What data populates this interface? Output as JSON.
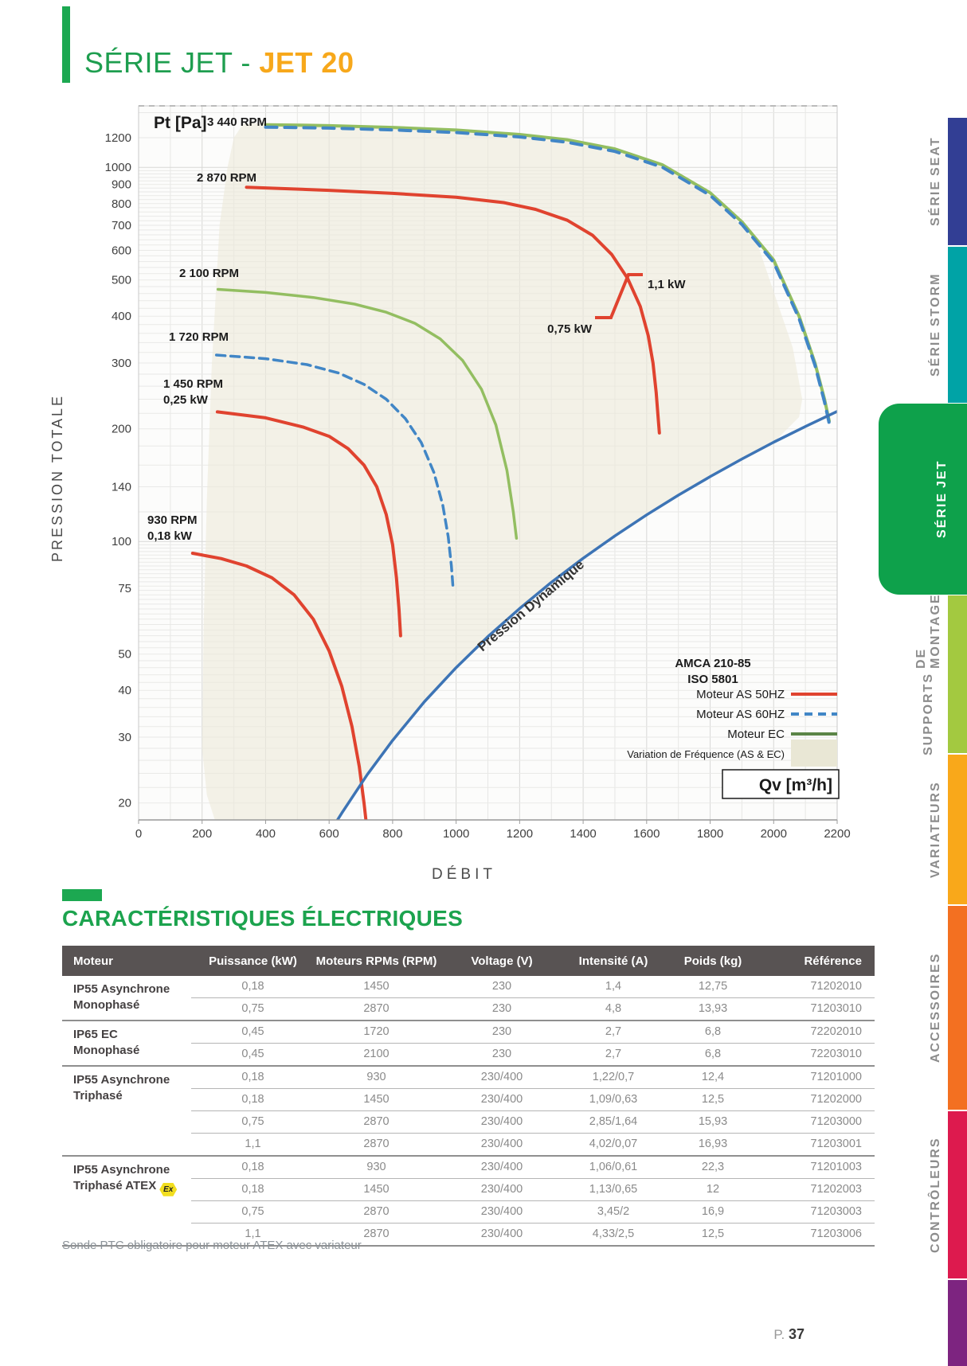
{
  "title": {
    "prefix": "SÉRIE JET - ",
    "highlight": "JET 20"
  },
  "sidebar": {
    "tabs": [
      {
        "id": "serie-seat",
        "lines": [
          "SÉRIE",
          "SEAT"
        ],
        "color": "#323E94",
        "active": false
      },
      {
        "id": "serie-storm",
        "lines": [
          "SÉRIE",
          "STORM"
        ],
        "color": "#00A3A6",
        "active": false
      },
      {
        "id": "serie-jet",
        "lines": [
          "SÉRIE",
          "JET"
        ],
        "color": "#0EA14B",
        "active": true
      },
      {
        "id": "supports-de-montage",
        "lines": [
          "SUPPORTS",
          "DE MONTAGE"
        ],
        "color": "#A3C940",
        "active": false
      },
      {
        "id": "variateurs",
        "lines": [
          "VARIATEURS"
        ],
        "color": "#F9A81A",
        "active": false
      },
      {
        "id": "accessoires",
        "lines": [
          "ACCESSOIRES"
        ],
        "color": "#F37021",
        "active": false
      },
      {
        "id": "controleurs",
        "lines": [
          "CONTRÔLEURS"
        ],
        "color": "#DD1A4E",
        "active": false
      },
      {
        "id": "section-next",
        "lines": [],
        "color": "#7D2480",
        "active": false
      }
    ]
  },
  "chart_data": {
    "type": "line",
    "y_label": "Pt [Pa]",
    "y_axis_caption": "PRESSION TOTALE",
    "x_label": "Qv [m³/h]",
    "x_axis_caption": "DÉBIT",
    "y_scale": "log",
    "x_range": [
      0,
      2200
    ],
    "y_range": [
      18,
      1460
    ],
    "x_ticks": [
      0,
      200,
      400,
      600,
      800,
      1000,
      1200,
      1400,
      1600,
      1800,
      2000,
      2200
    ],
    "y_ticks": [
      1200,
      1000,
      900,
      800,
      700,
      600,
      500,
      400,
      300,
      200,
      140,
      100,
      75,
      50,
      40,
      30,
      20
    ],
    "region_color": "#ECEADB",
    "region_points": [
      [
        330,
        1310
      ],
      [
        500,
        1315
      ],
      [
        800,
        1280
      ],
      [
        1000,
        1258
      ],
      [
        1200,
        1222
      ],
      [
        1400,
        1163
      ],
      [
        1600,
        1048
      ],
      [
        1750,
        905
      ],
      [
        1850,
        775
      ],
      [
        1950,
        620
      ],
      [
        2060,
        330
      ],
      [
        2090,
        240
      ],
      [
        2080,
        215
      ],
      [
        2000,
        184
      ],
      [
        1900,
        166
      ],
      [
        1700,
        133
      ],
      [
        1500,
        103.5
      ],
      [
        1300,
        77.8
      ],
      [
        1100,
        55.7
      ],
      [
        900,
        37.3
      ],
      [
        750,
        25.8
      ],
      [
        640,
        19
      ],
      [
        560,
        15.2
      ],
      [
        470,
        13
      ],
      [
        380,
        13.5
      ],
      [
        300,
        15
      ],
      [
        245,
        17.5
      ],
      [
        215,
        21
      ],
      [
        200,
        28
      ],
      [
        205,
        60
      ],
      [
        215,
        130
      ],
      [
        230,
        290
      ],
      [
        255,
        700
      ],
      [
        280,
        1000
      ],
      [
        300,
        1200
      ]
    ],
    "series": [
      {
        "name": "EC 3440 RPM",
        "color": "#93BE61",
        "dash": null,
        "width": 4,
        "points": [
          [
            400,
            1300
          ],
          [
            600,
            1292
          ],
          [
            800,
            1278
          ],
          [
            1000,
            1258
          ],
          [
            1200,
            1224
          ],
          [
            1350,
            1185
          ],
          [
            1500,
            1120
          ],
          [
            1650,
            1015
          ],
          [
            1800,
            855
          ],
          [
            1900,
            715
          ],
          [
            2000,
            565
          ],
          [
            2080,
            400
          ],
          [
            2130,
            300
          ],
          [
            2160,
            240
          ],
          [
            2175,
            210
          ]
        ]
      },
      {
        "name": "AS 60HZ 3440 RPM",
        "color": "#4186C6",
        "dash": "14 10",
        "width": 4,
        "points": [
          [
            400,
            1281
          ],
          [
            600,
            1273
          ],
          [
            800,
            1259
          ],
          [
            1000,
            1239
          ],
          [
            1200,
            1206
          ],
          [
            1350,
            1167
          ],
          [
            1500,
            1103
          ],
          [
            1650,
            1000
          ],
          [
            1800,
            842
          ],
          [
            1900,
            704
          ],
          [
            2000,
            557
          ],
          [
            2080,
            394
          ],
          [
            2130,
            296
          ],
          [
            2160,
            236
          ],
          [
            2175,
            207
          ]
        ]
      },
      {
        "name": "AS 50HZ 2870 RPM",
        "color": "#E0432F",
        "dash": null,
        "width": 4,
        "points": [
          [
            340,
            885
          ],
          [
            600,
            868
          ],
          [
            800,
            852
          ],
          [
            1000,
            832
          ],
          [
            1150,
            805
          ],
          [
            1250,
            772
          ],
          [
            1350,
            722
          ],
          [
            1430,
            658
          ],
          [
            1490,
            585
          ],
          [
            1540,
            505
          ],
          [
            1580,
            425
          ],
          [
            1605,
            355
          ],
          [
            1620,
            300
          ],
          [
            1630,
            250
          ],
          [
            1636,
            215
          ],
          [
            1640,
            195
          ]
        ]
      },
      {
        "name": "EC 2100 RPM",
        "color": "#93BE61",
        "dash": null,
        "width": 3.5,
        "points": [
          [
            250,
            472
          ],
          [
            400,
            463
          ],
          [
            550,
            449
          ],
          [
            680,
            431
          ],
          [
            780,
            410
          ],
          [
            870,
            383
          ],
          [
            950,
            348
          ],
          [
            1020,
            305
          ],
          [
            1080,
            255
          ],
          [
            1125,
            205
          ],
          [
            1160,
            155
          ],
          [
            1180,
            120
          ],
          [
            1190,
            102
          ]
        ]
      },
      {
        "name": "AS 60HZ 1720 RPM",
        "color": "#4186C6",
        "dash": "11 7",
        "width": 3.5,
        "points": [
          [
            245,
            315
          ],
          [
            400,
            308
          ],
          [
            530,
            297
          ],
          [
            630,
            282
          ],
          [
            710,
            263
          ],
          [
            780,
            240
          ],
          [
            840,
            213
          ],
          [
            890,
            184
          ],
          [
            930,
            153
          ],
          [
            958,
            125
          ],
          [
            975,
            103
          ],
          [
            985,
            86
          ],
          [
            990,
            76
          ]
        ]
      },
      {
        "name": "AS 50HZ 1450 RPM",
        "color": "#E0432F",
        "dash": null,
        "width": 4,
        "points": [
          [
            248,
            222
          ],
          [
            400,
            214
          ],
          [
            520,
            202
          ],
          [
            600,
            191
          ],
          [
            660,
            177
          ],
          [
            710,
            160
          ],
          [
            750,
            140
          ],
          [
            780,
            118
          ],
          [
            800,
            98
          ],
          [
            812,
            80
          ],
          [
            820,
            66
          ],
          [
            825,
            56
          ]
        ]
      },
      {
        "name": "AS 50HZ 930 RPM",
        "color": "#E0432F",
        "dash": null,
        "width": 4,
        "points": [
          [
            170,
            93
          ],
          [
            260,
            90
          ],
          [
            340,
            86
          ],
          [
            420,
            80
          ],
          [
            490,
            72
          ],
          [
            550,
            62
          ],
          [
            600,
            51
          ],
          [
            640,
            41
          ],
          [
            672,
            32
          ],
          [
            695,
            25
          ],
          [
            710,
            20
          ],
          [
            716,
            18
          ]
        ]
      },
      {
        "name": "Pression Dynamique",
        "color": "#3D74B5",
        "dash": null,
        "width": 3.5,
        "points": [
          [
            600,
            16.6
          ],
          [
            640,
            18.8
          ],
          [
            720,
            23.8
          ],
          [
            800,
            29.4
          ],
          [
            900,
            37.3
          ],
          [
            1000,
            46
          ],
          [
            1100,
            55.7
          ],
          [
            1200,
            66.2
          ],
          [
            1300,
            77.8
          ],
          [
            1400,
            90.2
          ],
          [
            1500,
            103.5
          ],
          [
            1600,
            117.8
          ],
          [
            1700,
            133
          ],
          [
            1800,
            149
          ],
          [
            1900,
            166.1
          ],
          [
            2000,
            184.2
          ],
          [
            2100,
            202.9
          ],
          [
            2200,
            222.7
          ]
        ]
      }
    ],
    "annotations": [
      {
        "text": "3 440 RPM",
        "x": 165,
        "y": 33,
        "anchor": "start",
        "size": 15
      },
      {
        "text": "2 870 RPM",
        "x": 152,
        "y": 103,
        "anchor": "start",
        "size": 15
      },
      {
        "text": "2 100 RPM",
        "x": 130,
        "y": 223,
        "anchor": "start",
        "size": 15
      },
      {
        "text": "1 720 RPM",
        "x": 117,
        "y": 303,
        "anchor": "start",
        "size": 15
      },
      {
        "text": "1 450 RPM",
        "x": 110,
        "y": 362,
        "anchor": "start",
        "size": 15
      },
      {
        "text": "0,25 kW",
        "x": 110,
        "y": 382,
        "anchor": "start",
        "size": 15
      },
      {
        "text": "930 RPM",
        "x": 90,
        "y": 533,
        "anchor": "start",
        "size": 15
      },
      {
        "text": "0,18 kW",
        "x": 90,
        "y": 553,
        "anchor": "start",
        "size": 15
      },
      {
        "text": "1,1 kW",
        "x": 718,
        "y": 237,
        "anchor": "start",
        "size": 15
      },
      {
        "text": "0,75 kW",
        "x": 648,
        "y": 293,
        "anchor": "end",
        "size": 15
      },
      {
        "text": "Pression Dynamique",
        "x": 575,
        "y": 640,
        "anchor": "middle",
        "size": 17,
        "rotate": -40
      }
    ],
    "power_marker": {
      "color": "#E0432F",
      "points": [
        [
          712,
          220
        ],
        [
          694,
          220
        ],
        [
          672,
          274
        ],
        [
          652,
          274
        ]
      ]
    },
    "legend": {
      "standards": [
        "AMCA 210-85",
        "ISO 5801"
      ],
      "entries": [
        {
          "label": "Moteur AS 50HZ",
          "type": "line",
          "color": "#E0432F",
          "dash": null
        },
        {
          "label": "Moteur AS 60HZ",
          "type": "line",
          "color": "#4186C6",
          "dash": "10 7"
        },
        {
          "label": "Moteur EC",
          "type": "line",
          "color": "#5B8547",
          "dash": null
        },
        {
          "label": "Variation de Fréquence (AS & EC)",
          "type": "area",
          "color": "#E9E7D5"
        }
      ]
    }
  },
  "electrical": {
    "section_title": "CARACTÉRISTIQUES ÉLECTRIQUES",
    "columns": [
      "Moteur",
      "Puissance (kW)",
      "Moteurs RPMs (RPM)",
      "Voltage (V)",
      "Intensité (A)",
      "Poids (kg)",
      "Référence"
    ],
    "atex_icon_text": "Ex",
    "groups": [
      {
        "name_lines": [
          "IP55 Asynchrone",
          "Monophasé"
        ],
        "atex": false,
        "rows": [
          [
            "0,18",
            "1450",
            "230",
            "1,4",
            "12,75",
            "71202010"
          ],
          [
            "0,75",
            "2870",
            "230",
            "4,8",
            "13,93",
            "71203010"
          ]
        ]
      },
      {
        "name_lines": [
          "IP65 EC",
          "Monophasé"
        ],
        "atex": false,
        "rows": [
          [
            "0,45",
            "1720",
            "230",
            "2,7",
            "6,8",
            "72202010"
          ],
          [
            "0,45",
            "2100",
            "230",
            "2,7",
            "6,8",
            "72203010"
          ]
        ]
      },
      {
        "name_lines": [
          "IP55 Asynchrone",
          "Triphasé"
        ],
        "atex": false,
        "rows": [
          [
            "0,18",
            "930",
            "230/400",
            "1,22/0,7",
            "12,4",
            "71201000"
          ],
          [
            "0,18",
            "1450",
            "230/400",
            "1,09/0,63",
            "12,5",
            "71202000"
          ],
          [
            "0,75",
            "2870",
            "230/400",
            "2,85/1,64",
            "15,93",
            "71203000"
          ],
          [
            "1,1",
            "2870",
            "230/400",
            "4,02/0,07",
            "16,93",
            "71203001"
          ]
        ]
      },
      {
        "name_lines": [
          "IP55 Asynchrone",
          "Triphasé ATEX"
        ],
        "atex": true,
        "rows": [
          [
            "0,18",
            "930",
            "230/400",
            "1,06/0,61",
            "22,3",
            "71201003"
          ],
          [
            "0,18",
            "1450",
            "230/400",
            "1,13/0,65",
            "12",
            "71202003"
          ],
          [
            "0,75",
            "2870",
            "230/400",
            "3,45/2",
            "16,9",
            "71203003"
          ],
          [
            "1,1",
            "2870",
            "230/400",
            "4,33/2,5",
            "12,5",
            "71203006"
          ]
        ]
      }
    ]
  },
  "footer": {
    "note": "Sonde PTC obligatoire pour moteur ATEX avec variateur",
    "page_prefix": "P.",
    "page_number": "37"
  }
}
